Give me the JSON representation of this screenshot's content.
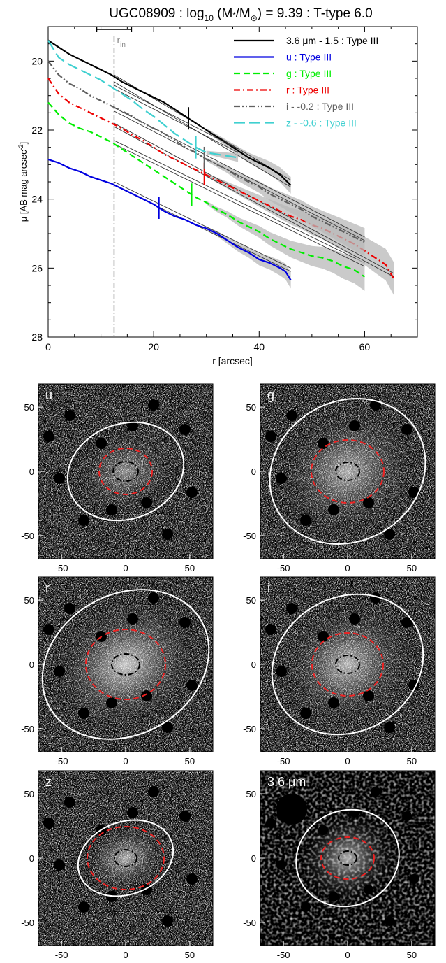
{
  "chart_data": [
    {
      "type": "line",
      "title": "UGC08909 : log10 (M*/M⊙) = 9.39 : T-type 6.0",
      "title_parts": {
        "pre": "UGC08909 : log",
        "sub": "10",
        "mid": " (M",
        "star": "*",
        "mid2": "/M",
        "sun": "⊙",
        "post": ") = 9.39 : T-type 6.0"
      },
      "xlabel": "r [arcsec]",
      "ylabel": "μ [AB mag arcsec-2]",
      "ylabel_parts": {
        "main": "μ [AB mag arcsec",
        "sup": "-2",
        "end": "]"
      },
      "xlim": [
        0,
        70
      ],
      "ylim": [
        28,
        19
      ],
      "y_inverted": true,
      "xticks": [
        0,
        20,
        40,
        60
      ],
      "yticks": [
        20,
        22,
        24,
        26,
        28
      ],
      "grid": false,
      "legend_position": "top-right",
      "r_in": {
        "value": 12.5,
        "label": "r",
        "label_sub": "in",
        "error": [
          9.2,
          15.8
        ],
        "color": "#888888"
      },
      "series": [
        {
          "name": "3.6 μm - 1.5 : Type III",
          "color": "#000000",
          "dash": "solid",
          "x": [
            0,
            2,
            4,
            6,
            8,
            10,
            12,
            14,
            16,
            18,
            20,
            22,
            24,
            26,
            28,
            30,
            32,
            34,
            36,
            38,
            40,
            42,
            44,
            46
          ],
          "y": [
            19.4,
            19.6,
            19.8,
            19.95,
            20.1,
            20.25,
            20.4,
            20.6,
            20.75,
            20.9,
            21.05,
            21.2,
            21.4,
            21.6,
            21.8,
            22.0,
            22.2,
            22.4,
            22.6,
            22.8,
            22.95,
            23.1,
            23.3,
            23.6
          ],
          "break_r": 26.6,
          "fits": [
            {
              "x": [
                12.5,
                46
              ],
              "y": [
                20.4,
                23.45
              ]
            },
            {
              "x": [
                12.5,
                46
              ],
              "y": [
                20.6,
                23.65
              ]
            }
          ]
        },
        {
          "name": "u : Type III",
          "color": "#0000e0",
          "dash": "solid",
          "x": [
            0,
            2,
            4,
            6,
            8,
            10,
            12,
            14,
            16,
            18,
            20,
            22,
            24,
            26,
            28,
            30,
            32,
            34,
            36,
            38,
            40,
            42,
            44,
            45,
            46
          ],
          "y": [
            22.85,
            22.95,
            23.1,
            23.2,
            23.35,
            23.45,
            23.55,
            23.7,
            23.85,
            24.0,
            24.15,
            24.35,
            24.5,
            24.6,
            24.75,
            24.85,
            25.0,
            25.2,
            25.4,
            25.55,
            25.75,
            25.85,
            26.0,
            26.1,
            26.35
          ],
          "break_r": 21.0,
          "fits": [
            {
              "x": [
                12.5,
                46
              ],
              "y": [
                23.5,
                26.0
              ]
            },
            {
              "x": [
                12.5,
                46
              ],
              "y": [
                23.6,
                26.1
              ]
            }
          ]
        },
        {
          "name": "g : Type III",
          "color": "#00ee00",
          "dash": "dashed",
          "x": [
            0,
            2,
            4,
            6,
            8,
            10,
            12,
            14,
            16,
            18,
            20,
            22,
            24,
            26,
            28,
            30,
            32,
            34,
            36,
            38,
            40,
            42,
            44,
            46,
            48,
            50,
            52,
            54,
            56,
            58,
            60
          ],
          "y": [
            21.2,
            21.55,
            21.8,
            21.95,
            22.05,
            22.2,
            22.35,
            22.55,
            22.75,
            22.95,
            23.15,
            23.35,
            23.55,
            23.75,
            23.95,
            24.1,
            24.3,
            24.45,
            24.65,
            24.8,
            24.95,
            25.15,
            25.3,
            25.45,
            25.55,
            25.65,
            25.7,
            25.8,
            25.95,
            26.05,
            26.25
          ],
          "break_r": 27.2,
          "fits": [
            {
              "x": [
                12.5,
                60
              ],
              "y": [
                22.3,
                25.85
              ]
            },
            {
              "x": [
                12.5,
                60
              ],
              "y": [
                22.4,
                25.95
              ]
            }
          ]
        },
        {
          "name": "r : Type III",
          "color": "#ee0000",
          "dash": "dashdot",
          "x": [
            0,
            2,
            4,
            6,
            8,
            10,
            12,
            14,
            16,
            18,
            20,
            22,
            24,
            26,
            28,
            30,
            32,
            34,
            36,
            38,
            40,
            42,
            44,
            46,
            48,
            50,
            52,
            54,
            56,
            58,
            60,
            62,
            64,
            65.5
          ],
          "y": [
            20.5,
            20.95,
            21.2,
            21.35,
            21.5,
            21.65,
            21.8,
            21.95,
            22.15,
            22.3,
            22.5,
            22.7,
            22.85,
            23.0,
            23.15,
            23.3,
            23.45,
            23.6,
            23.75,
            23.9,
            24.05,
            24.2,
            24.35,
            24.5,
            24.6,
            24.75,
            24.85,
            25.0,
            25.15,
            25.3,
            25.5,
            25.7,
            25.9,
            26.3
          ],
          "break_r": 29.6,
          "fits": [
            {
              "x": [
                12.5,
                65.5
              ],
              "y": [
                21.8,
                26.15
              ]
            },
            {
              "x": [
                12.5,
                65.5
              ],
              "y": [
                21.9,
                26.25
              ]
            }
          ]
        },
        {
          "name": "i - -0.2 : Type III",
          "color": "#606060",
          "dash": "dashdotdot",
          "x": [
            0,
            2,
            4,
            6,
            8,
            10,
            12,
            14,
            16,
            18,
            20,
            22,
            24,
            26,
            28,
            30,
            32,
            34,
            36,
            38,
            40,
            42,
            44,
            46,
            48,
            50,
            52,
            54,
            56,
            58,
            60
          ],
          "y": [
            20.0,
            20.4,
            20.65,
            20.8,
            21.0,
            21.15,
            21.3,
            21.45,
            21.6,
            21.8,
            21.95,
            22.1,
            22.3,
            22.5,
            22.65,
            22.85,
            23.0,
            23.15,
            23.35,
            23.5,
            23.65,
            23.85,
            24.0,
            24.15,
            24.3,
            24.5,
            24.65,
            24.8,
            24.95,
            25.1,
            25.25
          ],
          "break_r": 29.6,
          "fits": [
            {
              "x": [
                12.5,
                60
              ],
              "y": [
                21.35,
                25.1
              ]
            },
            {
              "x": [
                12.5,
                60
              ],
              "y": [
                21.45,
                25.2
              ]
            }
          ]
        },
        {
          "name": "z - -0.6 : Type III",
          "color": "#40d0d0",
          "dash": "longdash",
          "x": [
            0,
            2,
            4,
            6,
            8,
            10,
            12,
            14,
            16,
            18,
            20,
            22,
            24,
            26,
            28,
            30,
            32,
            34,
            36
          ],
          "y": [
            19.4,
            19.9,
            20.1,
            20.25,
            20.4,
            20.55,
            20.75,
            20.95,
            21.15,
            21.4,
            21.6,
            21.85,
            22.1,
            22.3,
            22.5,
            22.65,
            22.7,
            22.75,
            22.8
          ],
          "break_r": 28.0,
          "fits": [
            {
              "x": [
                12.5,
                36
              ],
              "y": [
                20.7,
                22.55
              ]
            },
            {
              "x": [
                12.5,
                36
              ],
              "y": [
                20.8,
                22.65
              ]
            }
          ]
        }
      ]
    },
    {
      "type": "image",
      "panel": "u",
      "label": "u",
      "xticks": [
        -50,
        0,
        50
      ],
      "yticks": [
        50,
        0,
        -50
      ],
      "outer_ellipse": true
    },
    {
      "type": "image",
      "panel": "g",
      "label": "g",
      "xticks": [
        -50,
        0,
        50
      ],
      "yticks": [
        50,
        0,
        -50
      ],
      "outer_ellipse": true
    },
    {
      "type": "image",
      "panel": "r",
      "label": "r",
      "xticks": [
        -50,
        0,
        50
      ],
      "yticks": [
        50,
        0,
        -50
      ],
      "outer_ellipse": true
    },
    {
      "type": "image",
      "panel": "i",
      "label": "i",
      "xticks": [
        -50,
        0,
        50
      ],
      "yticks": [
        50,
        0,
        -50
      ],
      "outer_ellipse": true
    },
    {
      "type": "image",
      "panel": "z",
      "label": "z",
      "xticks": [
        -50,
        0,
        50
      ],
      "yticks": [
        50,
        0,
        -50
      ],
      "outer_ellipse": true
    },
    {
      "type": "image",
      "panel": "3.6",
      "label": "3.6 μm",
      "xticks": [
        -50,
        0,
        50
      ],
      "yticks": [
        50,
        0,
        -50
      ],
      "outer_ellipse": true
    }
  ]
}
